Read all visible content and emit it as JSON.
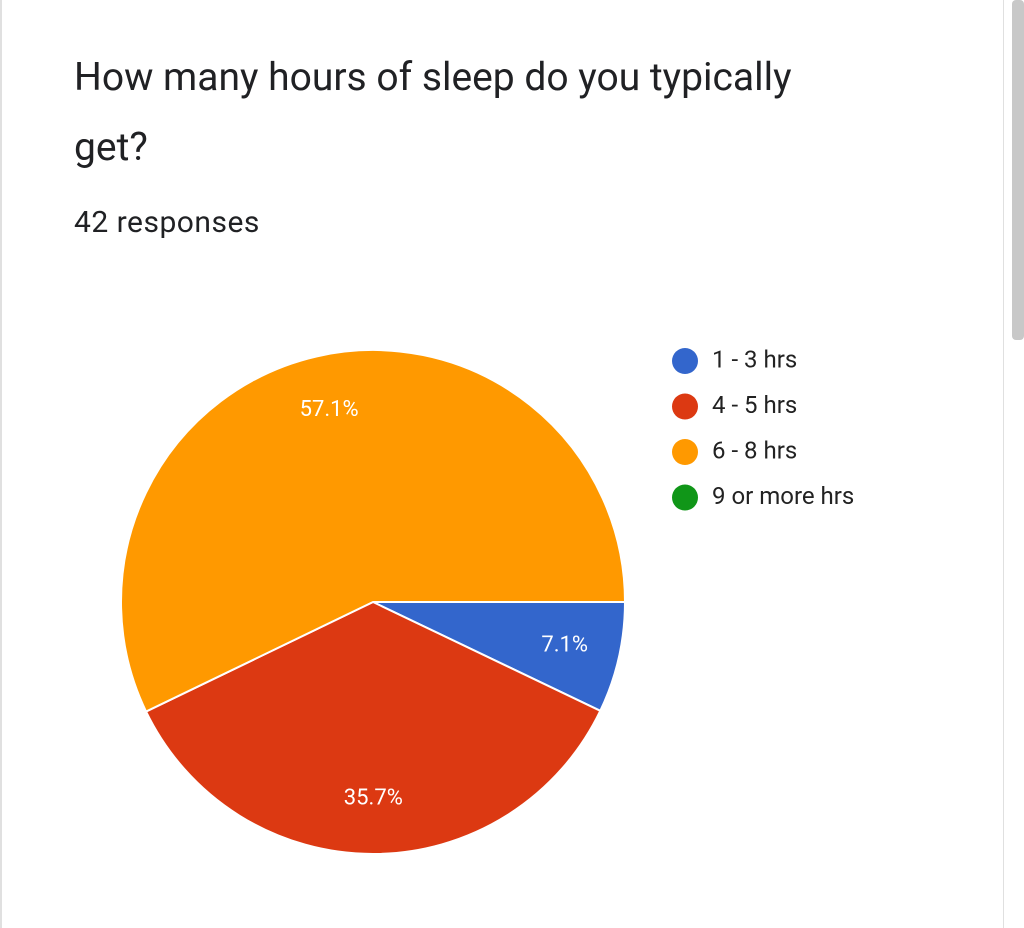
{
  "chart_data": {
    "type": "pie",
    "title": "How many hours of sleep do you typically get?",
    "subtitle": "42 responses",
    "categories": [
      "1 - 3 hrs",
      "4 - 5 hrs",
      "6 - 8 hrs",
      "9 or more hrs"
    ],
    "values": [
      7.1,
      35.7,
      57.1,
      0
    ],
    "value_labels": [
      "7.1%",
      "35.7%",
      "57.1%",
      null
    ],
    "colors": [
      "#3366cc",
      "#dc3912",
      "#ff9900",
      "#109618"
    ],
    "legend": "right"
  }
}
